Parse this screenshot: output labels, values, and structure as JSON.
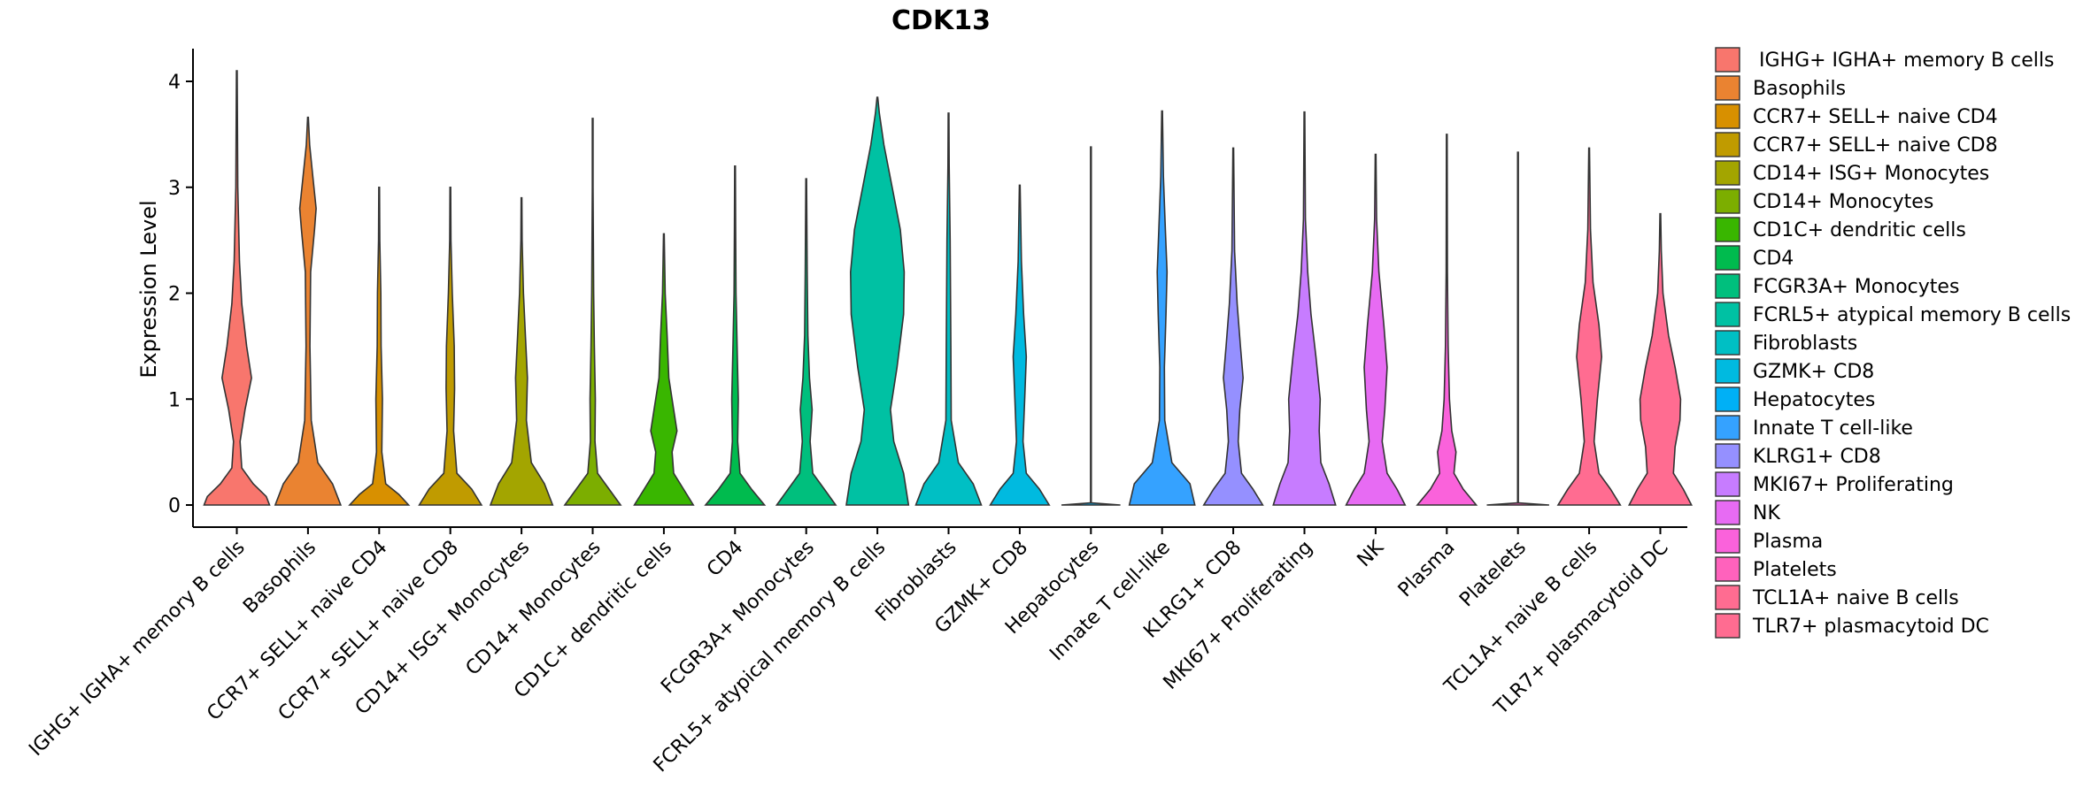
{
  "chart_data": {
    "type": "violin",
    "title": "CDK13",
    "xlabel": "",
    "ylabel": "Expression Level",
    "ylim": [
      -0.2,
      4.3
    ],
    "yticks": [
      0,
      1,
      2,
      3,
      4
    ],
    "legend_position": "right",
    "categories": [
      "IGHG+ IGHA+ memory B cells",
      "Basophils",
      "CCR7+ SELL+ naive CD4",
      "CCR7+ SELL+ naive CD8",
      "CD14+ ISG+ Monocytes",
      "CD14+ Monocytes",
      "CD1C+ dendritic cells",
      "CD4",
      "FCGR3A+ Monocytes",
      "FCRL5+ atypical memory B cells",
      "Fibroblasts",
      "GZMK+ CD8",
      "Hepatocytes",
      "Innate T cell-like",
      "KLRG1+ CD8",
      "MKI67+ Proliferating",
      "NK",
      "Plasma",
      "Platelets",
      "TCL1A+ naive B cells",
      "TLR7+ plasmacytoid DC"
    ],
    "legend_labels": [
      " IGHG+ IGHA+ memory B cells",
      "Basophils",
      "CCR7+ SELL+ naive CD4",
      "CCR7+ SELL+ naive CD8",
      "CD14+ ISG+ Monocytes",
      "CD14+ Monocytes",
      "CD1C+ dendritic cells",
      "CD4",
      "FCGR3A+ Monocytes",
      "FCRL5+ atypical memory B cells",
      "Fibroblasts",
      "GZMK+ CD8",
      "Hepatocytes",
      "Innate T cell-like",
      "KLRG1+ CD8",
      "MKI67+ Proliferating",
      "NK",
      "Plasma",
      "Platelets",
      "TCL1A+ naive B cells",
      "TLR7+ plasmacytoid DC"
    ],
    "colors": [
      "#F8766D",
      "#EA8331",
      "#D89000",
      "#C09B00",
      "#A3A500",
      "#7CAE00",
      "#39B600",
      "#00BB4E",
      "#00BF7D",
      "#00C1A3",
      "#00BFC4",
      "#00BAE0",
      "#00B0F6",
      "#35A2FF",
      "#9590FF",
      "#C77CFF",
      "#E76BF3",
      "#FA62DB",
      "#FF62BC",
      "#FF6C91",
      "#FF6C91"
    ],
    "violins": [
      {
        "max": 4.1,
        "density": [
          [
            0,
            1.0
          ],
          [
            0.08,
            0.9
          ],
          [
            0.2,
            0.5
          ],
          [
            0.35,
            0.15
          ],
          [
            0.6,
            0.1
          ],
          [
            0.9,
            0.25
          ],
          [
            1.2,
            0.45
          ],
          [
            1.5,
            0.3
          ],
          [
            1.9,
            0.15
          ],
          [
            2.3,
            0.08
          ],
          [
            3.0,
            0.03
          ],
          [
            4.1,
            0.01
          ]
        ]
      },
      {
        "max": 3.66,
        "density": [
          [
            0,
            1.0
          ],
          [
            0.2,
            0.75
          ],
          [
            0.4,
            0.3
          ],
          [
            0.8,
            0.1
          ],
          [
            1.5,
            0.06
          ],
          [
            2.2,
            0.08
          ],
          [
            2.6,
            0.2
          ],
          [
            2.8,
            0.25
          ],
          [
            3.1,
            0.15
          ],
          [
            3.4,
            0.05
          ],
          [
            3.66,
            0.01
          ]
        ]
      },
      {
        "max": 3.0,
        "density": [
          [
            0,
            0.9
          ],
          [
            0.1,
            0.6
          ],
          [
            0.2,
            0.2
          ],
          [
            0.5,
            0.08
          ],
          [
            1.0,
            0.1
          ],
          [
            1.5,
            0.06
          ],
          [
            2.0,
            0.05
          ],
          [
            2.5,
            0.02
          ],
          [
            3.0,
            0.01
          ]
        ]
      },
      {
        "max": 3.0,
        "density": [
          [
            0,
            0.95
          ],
          [
            0.15,
            0.65
          ],
          [
            0.3,
            0.2
          ],
          [
            0.7,
            0.1
          ],
          [
            1.1,
            0.13
          ],
          [
            1.5,
            0.12
          ],
          [
            2.0,
            0.06
          ],
          [
            2.5,
            0.02
          ],
          [
            3.0,
            0.01
          ]
        ]
      },
      {
        "max": 2.9,
        "density": [
          [
            0,
            0.95
          ],
          [
            0.2,
            0.7
          ],
          [
            0.4,
            0.3
          ],
          [
            0.8,
            0.15
          ],
          [
            1.2,
            0.18
          ],
          [
            1.6,
            0.12
          ],
          [
            2.0,
            0.06
          ],
          [
            2.5,
            0.02
          ],
          [
            2.9,
            0.01
          ]
        ]
      },
      {
        "max": 3.65,
        "density": [
          [
            0,
            0.85
          ],
          [
            0.15,
            0.5
          ],
          [
            0.3,
            0.15
          ],
          [
            0.6,
            0.07
          ],
          [
            1.0,
            0.08
          ],
          [
            1.5,
            0.05
          ],
          [
            2.0,
            0.03
          ],
          [
            3.0,
            0.01
          ],
          [
            3.65,
            0.01
          ]
        ]
      },
      {
        "max": 2.56,
        "density": [
          [
            0,
            0.9
          ],
          [
            0.15,
            0.6
          ],
          [
            0.3,
            0.3
          ],
          [
            0.5,
            0.25
          ],
          [
            0.7,
            0.4
          ],
          [
            0.9,
            0.3
          ],
          [
            1.2,
            0.15
          ],
          [
            1.6,
            0.1
          ],
          [
            2.0,
            0.04
          ],
          [
            2.56,
            0.01
          ]
        ]
      },
      {
        "max": 3.2,
        "density": [
          [
            0,
            0.9
          ],
          [
            0.15,
            0.5
          ],
          [
            0.3,
            0.15
          ],
          [
            0.6,
            0.08
          ],
          [
            1.0,
            0.1
          ],
          [
            1.4,
            0.07
          ],
          [
            2.0,
            0.03
          ],
          [
            2.6,
            0.02
          ],
          [
            3.2,
            0.01
          ]
        ]
      },
      {
        "max": 3.08,
        "density": [
          [
            0,
            0.9
          ],
          [
            0.15,
            0.55
          ],
          [
            0.3,
            0.2
          ],
          [
            0.6,
            0.12
          ],
          [
            0.9,
            0.18
          ],
          [
            1.2,
            0.1
          ],
          [
            1.6,
            0.05
          ],
          [
            2.2,
            0.03
          ],
          [
            3.08,
            0.01
          ]
        ]
      },
      {
        "max": 3.85,
        "density": [
          [
            0,
            0.95
          ],
          [
            0.3,
            0.8
          ],
          [
            0.6,
            0.5
          ],
          [
            0.9,
            0.4
          ],
          [
            1.3,
            0.6
          ],
          [
            1.8,
            0.8
          ],
          [
            2.2,
            0.82
          ],
          [
            2.6,
            0.7
          ],
          [
            3.0,
            0.45
          ],
          [
            3.4,
            0.2
          ],
          [
            3.7,
            0.06
          ],
          [
            3.85,
            0.01
          ]
        ]
      },
      {
        "max": 3.7,
        "density": [
          [
            0,
            1.0
          ],
          [
            0.2,
            0.75
          ],
          [
            0.4,
            0.3
          ],
          [
            0.8,
            0.08
          ],
          [
            1.5,
            0.07
          ],
          [
            2.5,
            0.05
          ],
          [
            3.2,
            0.02
          ],
          [
            3.7,
            0.01
          ]
        ]
      },
      {
        "max": 3.02,
        "density": [
          [
            0,
            0.9
          ],
          [
            0.15,
            0.6
          ],
          [
            0.3,
            0.2
          ],
          [
            0.6,
            0.1
          ],
          [
            1.0,
            0.15
          ],
          [
            1.4,
            0.2
          ],
          [
            1.8,
            0.12
          ],
          [
            2.3,
            0.05
          ],
          [
            3.02,
            0.01
          ]
        ]
      },
      {
        "max": 3.38,
        "density": [
          [
            0,
            0.9
          ],
          [
            0.02,
            0.01
          ],
          [
            3.38,
            0.01
          ]
        ]
      },
      {
        "max": 3.72,
        "density": [
          [
            0,
            1.0
          ],
          [
            0.2,
            0.85
          ],
          [
            0.4,
            0.3
          ],
          [
            0.8,
            0.08
          ],
          [
            1.3,
            0.07
          ],
          [
            1.8,
            0.12
          ],
          [
            2.2,
            0.15
          ],
          [
            2.6,
            0.1
          ],
          [
            3.1,
            0.04
          ],
          [
            3.72,
            0.01
          ]
        ]
      },
      {
        "max": 3.37,
        "density": [
          [
            0,
            0.9
          ],
          [
            0.15,
            0.6
          ],
          [
            0.3,
            0.25
          ],
          [
            0.6,
            0.15
          ],
          [
            0.9,
            0.2
          ],
          [
            1.2,
            0.3
          ],
          [
            1.5,
            0.22
          ],
          [
            1.9,
            0.12
          ],
          [
            2.4,
            0.04
          ],
          [
            3.37,
            0.01
          ]
        ]
      },
      {
        "max": 3.71,
        "density": [
          [
            0,
            0.95
          ],
          [
            0.2,
            0.75
          ],
          [
            0.4,
            0.5
          ],
          [
            0.7,
            0.45
          ],
          [
            1.0,
            0.48
          ],
          [
            1.4,
            0.35
          ],
          [
            1.8,
            0.2
          ],
          [
            2.2,
            0.1
          ],
          [
            2.7,
            0.03
          ],
          [
            3.71,
            0.01
          ]
        ]
      },
      {
        "max": 3.31,
        "density": [
          [
            0,
            0.9
          ],
          [
            0.15,
            0.65
          ],
          [
            0.3,
            0.35
          ],
          [
            0.6,
            0.2
          ],
          [
            0.9,
            0.28
          ],
          [
            1.3,
            0.35
          ],
          [
            1.7,
            0.25
          ],
          [
            2.2,
            0.1
          ],
          [
            2.7,
            0.03
          ],
          [
            3.31,
            0.01
          ]
        ]
      },
      {
        "max": 3.5,
        "density": [
          [
            0,
            0.9
          ],
          [
            0.15,
            0.5
          ],
          [
            0.3,
            0.22
          ],
          [
            0.5,
            0.28
          ],
          [
            0.7,
            0.15
          ],
          [
            1.0,
            0.08
          ],
          [
            1.5,
            0.04
          ],
          [
            2.2,
            0.02
          ],
          [
            3.5,
            0.01
          ]
        ]
      },
      {
        "max": 3.33,
        "density": [
          [
            0,
            0.95
          ],
          [
            0.02,
            0.01
          ],
          [
            3.33,
            0.01
          ]
        ]
      },
      {
        "max": 3.37,
        "density": [
          [
            0,
            0.95
          ],
          [
            0.15,
            0.65
          ],
          [
            0.3,
            0.3
          ],
          [
            0.6,
            0.15
          ],
          [
            1.0,
            0.25
          ],
          [
            1.4,
            0.38
          ],
          [
            1.7,
            0.3
          ],
          [
            2.1,
            0.12
          ],
          [
            2.6,
            0.04
          ],
          [
            3.37,
            0.01
          ]
        ]
      },
      {
        "max": 2.75,
        "density": [
          [
            0,
            0.95
          ],
          [
            0.15,
            0.7
          ],
          [
            0.3,
            0.4
          ],
          [
            0.55,
            0.45
          ],
          [
            0.8,
            0.6
          ],
          [
            1.0,
            0.62
          ],
          [
            1.3,
            0.45
          ],
          [
            1.6,
            0.25
          ],
          [
            2.0,
            0.08
          ],
          [
            2.4,
            0.03
          ],
          [
            2.75,
            0.01
          ]
        ]
      }
    ]
  }
}
